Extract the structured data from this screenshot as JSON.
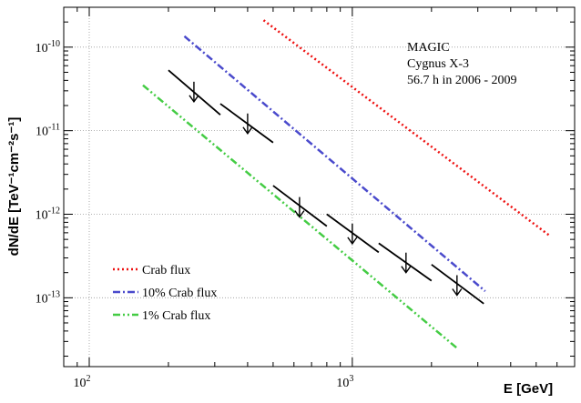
{
  "chart_data": {
    "type": "line",
    "x_scale": "log",
    "y_scale": "log",
    "xlim": [
      80,
      7000
    ],
    "ylim": [
      1.5e-14,
      3e-10
    ],
    "grid": true,
    "xlabel": "E [GeV]",
    "ylabel": "dN/dE [TeV⁻¹cm⁻²s⁻¹]",
    "x_ticks": [
      {
        "value": 100,
        "base": "10",
        "exp": "2"
      },
      {
        "value": 1000,
        "base": "10",
        "exp": "3"
      }
    ],
    "y_ticks": [
      {
        "value": 1e-13,
        "base": "10",
        "exp": "-13"
      },
      {
        "value": 1e-12,
        "base": "10",
        "exp": "-12"
      },
      {
        "value": 1e-11,
        "base": "10",
        "exp": "-11"
      },
      {
        "value": 1e-10,
        "base": "10",
        "exp": "-10"
      }
    ],
    "annotation": [
      "MAGIC",
      "Cygnus X-3",
      "56.7 h in 2006 - 2009"
    ],
    "legend_position": "bottom-left",
    "series": [
      {
        "name": "Crab flux",
        "color": "#ee1111",
        "dash": "dotted",
        "points": [
          [
            460,
            2.1e-10
          ],
          [
            5600,
            5.6e-13
          ]
        ]
      },
      {
        "name": "10% Crab flux",
        "color": "#4a4acc",
        "dash": "dashdot",
        "points": [
          [
            230,
            1.35e-10
          ],
          [
            3200,
            1.2e-13
          ]
        ]
      },
      {
        "name": "1% Crab flux",
        "color": "#44cc44",
        "dash": "dashdotdot",
        "points": [
          [
            160,
            3.5e-11
          ],
          [
            2500,
            2.5e-14
          ]
        ]
      }
    ],
    "upper_limits": [
      {
        "e_lo": 200,
        "e_hi": 315,
        "f_lo": 5.3e-11,
        "f_hi": 1.55e-11,
        "e": 250,
        "f": 3e-11
      },
      {
        "e_lo": 315,
        "e_hi": 500,
        "f_lo": 2.1e-11,
        "f_hi": 7.2e-12,
        "e": 400,
        "f": 1.25e-11
      },
      {
        "e_lo": 500,
        "e_hi": 800,
        "f_lo": 2.2e-12,
        "f_hi": 7.2e-13,
        "e": 630,
        "f": 1.25e-12
      },
      {
        "e_lo": 800,
        "e_hi": 1260,
        "f_lo": 1e-12,
        "f_hi": 3.5e-13,
        "e": 1000,
        "f": 6e-13
      },
      {
        "e_lo": 1260,
        "e_hi": 2000,
        "f_lo": 4.5e-13,
        "f_hi": 1.6e-13,
        "e": 1600,
        "f": 2.7e-13
      },
      {
        "e_lo": 2000,
        "e_hi": 3160,
        "f_lo": 2.5e-13,
        "f_hi": 8.5e-14,
        "e": 2500,
        "f": 1.45e-13
      }
    ]
  }
}
